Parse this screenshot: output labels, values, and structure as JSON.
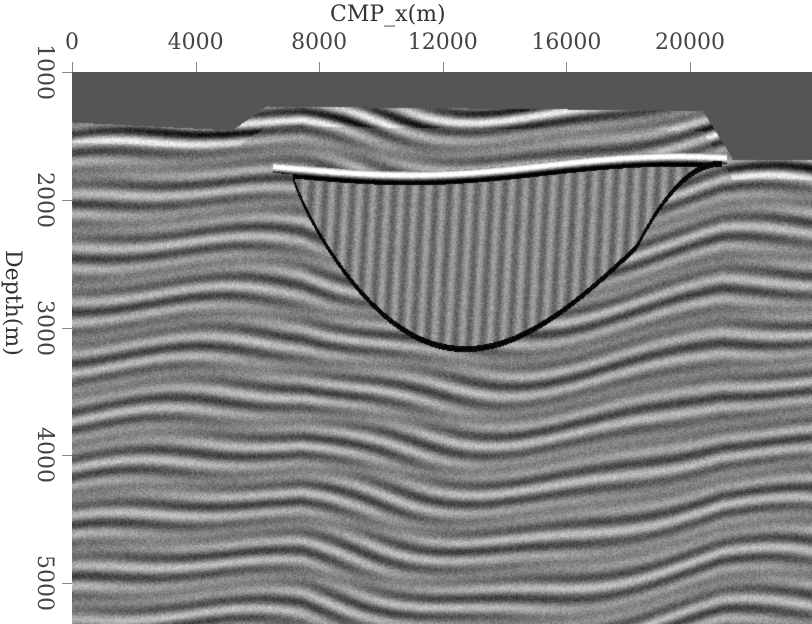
{
  "chart_data": {
    "type": "heatmap",
    "title": "",
    "xlabel": "CMP_x(m)",
    "ylabel": "Depth(m)",
    "x_axis_position": "top",
    "xlim": [
      0,
      23950
    ],
    "ylim": [
      1000,
      5320
    ],
    "x_ticks": [
      "0",
      "4000",
      "8000",
      "12000",
      "16000",
      "20000"
    ],
    "y_ticks": [
      "1000",
      "2000",
      "3000",
      "4000",
      "5000"
    ],
    "colormap": "grayscale",
    "grid": false,
    "legend": "none"
  }
}
